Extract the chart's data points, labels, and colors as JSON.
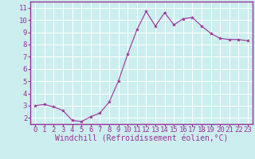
{
  "x": [
    0,
    1,
    2,
    3,
    4,
    5,
    6,
    7,
    8,
    9,
    10,
    11,
    12,
    13,
    14,
    15,
    16,
    17,
    18,
    19,
    20,
    21,
    22,
    23
  ],
  "y": [
    3.0,
    3.1,
    2.9,
    2.6,
    1.8,
    1.7,
    2.1,
    2.4,
    3.3,
    5.0,
    7.2,
    9.2,
    10.7,
    9.5,
    10.6,
    9.6,
    10.1,
    10.2,
    9.5,
    8.9,
    8.5,
    8.4,
    8.4,
    8.3
  ],
  "line_color": "#993399",
  "marker_color": "#993399",
  "bg_color": "#cceeee",
  "grid_color": "#ffffff",
  "xlabel": "Windchill (Refroidissement éolien,°C)",
  "xlim": [
    -0.5,
    23.5
  ],
  "ylim": [
    1.5,
    11.5
  ],
  "yticks": [
    2,
    3,
    4,
    5,
    6,
    7,
    8,
    9,
    10,
    11
  ],
  "xticks": [
    0,
    1,
    2,
    3,
    4,
    5,
    6,
    7,
    8,
    9,
    10,
    11,
    12,
    13,
    14,
    15,
    16,
    17,
    18,
    19,
    20,
    21,
    22,
    23
  ],
  "xlabel_color": "#993399",
  "tick_color": "#993399",
  "axis_color": "#993399",
  "font_size": 6.5,
  "xlabel_font_size": 7.0
}
